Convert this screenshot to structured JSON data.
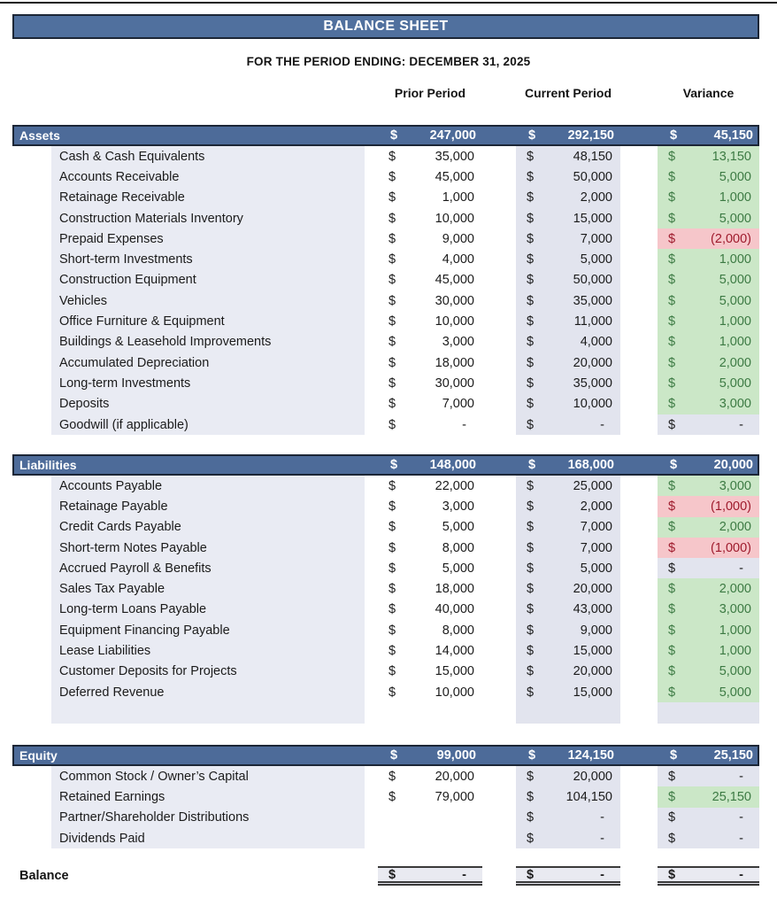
{
  "page": {
    "title": "BALANCE SHEET",
    "subtitle": "FOR THE PERIOD ENDING: DECEMBER 31, 2025"
  },
  "currency_symbol": "$",
  "column_headers": {
    "prior": "Prior Period",
    "current": "Current Period",
    "variance": "Variance"
  },
  "colors": {
    "title_bar_bg": "#50709e",
    "section_bar_bg": "#4d6b99",
    "bar_border": "#1c2636",
    "label_column_bg": "#e9ebf3",
    "current_column_bg": "#e2e4ee",
    "variance_positive_bg": "#cbe7c7",
    "variance_positive_text": "#3c7a43",
    "variance_negative_bg": "#f6c6ca",
    "variance_negative_text": "#9e1a2c",
    "variance_neutral_bg": "#e2e4ee",
    "text": "#1b1b1b"
  },
  "sections": [
    {
      "name": "Assets",
      "totals": {
        "prior": "247,000",
        "current": "292,150",
        "variance": "45,150"
      },
      "trailing_empty_row": false,
      "rows": [
        {
          "label": "Cash & Cash Equivalents",
          "prior": "35,000",
          "current": "48,150",
          "variance": "13,150",
          "variance_status": "positive"
        },
        {
          "label": "Accounts Receivable",
          "prior": "45,000",
          "current": "50,000",
          "variance": "5,000",
          "variance_status": "positive"
        },
        {
          "label": "Retainage Receivable",
          "prior": "1,000",
          "current": "2,000",
          "variance": "1,000",
          "variance_status": "positive"
        },
        {
          "label": "Construction Materials Inventory",
          "prior": "10,000",
          "current": "15,000",
          "variance": "5,000",
          "variance_status": "positive"
        },
        {
          "label": "Prepaid Expenses",
          "prior": "9,000",
          "current": "7,000",
          "variance": "(2,000)",
          "variance_status": "negative"
        },
        {
          "label": "Short-term Investments",
          "prior": "4,000",
          "current": "5,000",
          "variance": "1,000",
          "variance_status": "positive"
        },
        {
          "label": "Construction Equipment",
          "prior": "45,000",
          "current": "50,000",
          "variance": "5,000",
          "variance_status": "positive"
        },
        {
          "label": "Vehicles",
          "prior": "30,000",
          "current": "35,000",
          "variance": "5,000",
          "variance_status": "positive"
        },
        {
          "label": "Office Furniture & Equipment",
          "prior": "10,000",
          "current": "11,000",
          "variance": "1,000",
          "variance_status": "positive"
        },
        {
          "label": "Buildings & Leasehold Improvements",
          "prior": "3,000",
          "current": "4,000",
          "variance": "1,000",
          "variance_status": "positive"
        },
        {
          "label": "Accumulated Depreciation",
          "prior": "18,000",
          "current": "20,000",
          "variance": "2,000",
          "variance_status": "positive"
        },
        {
          "label": "Long-term Investments",
          "prior": "30,000",
          "current": "35,000",
          "variance": "5,000",
          "variance_status": "positive"
        },
        {
          "label": "Deposits",
          "prior": "7,000",
          "current": "10,000",
          "variance": "3,000",
          "variance_status": "positive"
        },
        {
          "label": "Goodwill (if applicable)",
          "prior": "-",
          "current": "-",
          "variance": "-",
          "variance_status": "neutral"
        }
      ]
    },
    {
      "name": "Liabilities",
      "totals": {
        "prior": "148,000",
        "current": "168,000",
        "variance": "20,000"
      },
      "trailing_empty_row": true,
      "rows": [
        {
          "label": "Accounts Payable",
          "prior": "22,000",
          "current": "25,000",
          "variance": "3,000",
          "variance_status": "positive"
        },
        {
          "label": "Retainage Payable",
          "prior": "3,000",
          "current": "2,000",
          "variance": "(1,000)",
          "variance_status": "negative"
        },
        {
          "label": "Credit Cards Payable",
          "prior": "5,000",
          "current": "7,000",
          "variance": "2,000",
          "variance_status": "positive"
        },
        {
          "label": "Short-term Notes Payable",
          "prior": "8,000",
          "current": "7,000",
          "variance": "(1,000)",
          "variance_status": "negative"
        },
        {
          "label": "Accrued Payroll & Benefits",
          "prior": "5,000",
          "current": "5,000",
          "variance": "-",
          "variance_status": "neutral"
        },
        {
          "label": "Sales Tax Payable",
          "prior": "18,000",
          "current": "20,000",
          "variance": "2,000",
          "variance_status": "positive"
        },
        {
          "label": "Long-term Loans Payable",
          "prior": "40,000",
          "current": "43,000",
          "variance": "3,000",
          "variance_status": "positive"
        },
        {
          "label": "Equipment Financing Payable",
          "prior": "8,000",
          "current": "9,000",
          "variance": "1,000",
          "variance_status": "positive"
        },
        {
          "label": "Lease Liabilities",
          "prior": "14,000",
          "current": "15,000",
          "variance": "1,000",
          "variance_status": "positive"
        },
        {
          "label": "Customer Deposits for Projects",
          "prior": "15,000",
          "current": "20,000",
          "variance": "5,000",
          "variance_status": "positive"
        },
        {
          "label": "Deferred Revenue",
          "prior": "10,000",
          "current": "15,000",
          "variance": "5,000",
          "variance_status": "positive"
        }
      ]
    },
    {
      "name": "Equity",
      "totals": {
        "prior": "99,000",
        "current": "124,150",
        "variance": "25,150"
      },
      "trailing_empty_row": false,
      "rows": [
        {
          "label": "Common Stock / Owner’s Capital",
          "prior": "20,000",
          "current": "20,000",
          "variance": "-",
          "variance_status": "neutral"
        },
        {
          "label": "Retained Earnings",
          "prior": "79,000",
          "current": "104,150",
          "variance": "25,150",
          "variance_status": "positive"
        },
        {
          "label": "Partner/Shareholder Distributions",
          "prior": "",
          "prior_empty": true,
          "current": "-",
          "variance": "-",
          "variance_status": "neutral"
        },
        {
          "label": "Dividends Paid",
          "prior": "",
          "prior_empty": true,
          "current": "-",
          "variance": "-",
          "variance_status": "neutral"
        }
      ]
    }
  ],
  "balance_row": {
    "label": "Balance",
    "prior": "-",
    "current": "-",
    "variance": "-"
  }
}
